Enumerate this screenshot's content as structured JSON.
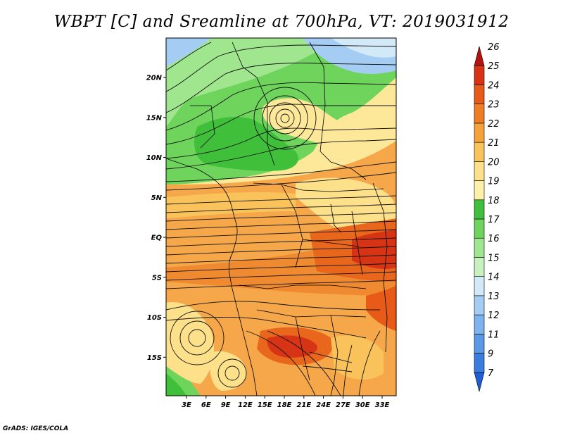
{
  "title": "WBPT [C] and Sreamline at 700hPa, VT: 2019031912",
  "credit": "GrADS: IGES/COLA",
  "lat_ticks": [
    {
      "label": "20N",
      "lat": 20
    },
    {
      "label": "15N",
      "lat": 15
    },
    {
      "label": "10N",
      "lat": 10
    },
    {
      "label": "5N",
      "lat": 5
    },
    {
      "label": "EQ",
      "lat": 0
    },
    {
      "label": "5S",
      "lat": -5
    },
    {
      "label": "10S",
      "lat": -10
    },
    {
      "label": "15S",
      "lat": -15
    }
  ],
  "lon_ticks": [
    {
      "label": "3E",
      "lon": 3
    },
    {
      "label": "6E",
      "lon": 6
    },
    {
      "label": "9E",
      "lon": 9
    },
    {
      "label": "12E",
      "lon": 12
    },
    {
      "label": "15E",
      "lon": 15
    },
    {
      "label": "18E",
      "lon": 18
    },
    {
      "label": "21E",
      "lon": 21
    },
    {
      "label": "24E",
      "lon": 24
    },
    {
      "label": "27E",
      "lon": 27
    },
    {
      "label": "30E",
      "lon": 30
    },
    {
      "label": "33E",
      "lon": 33
    }
  ],
  "colorbar": {
    "levels": [
      "7",
      "9",
      "11",
      "12",
      "13",
      "14",
      "15",
      "16",
      "17",
      "18",
      "19",
      "20",
      "21",
      "22",
      "23",
      "24",
      "25",
      "26"
    ],
    "colors": [
      "#1f5fd6",
      "#3a7de0",
      "#5a98e8",
      "#7db3ee",
      "#a5cdf3",
      "#d2e9f8",
      "#c8f0c0",
      "#9fe68e",
      "#6fd45c",
      "#3fbf3a",
      "#fdf0a8",
      "#fde08a",
      "#f9c25a",
      "#f5a23a",
      "#ef7f25",
      "#e85a18",
      "#d63414",
      "#b41410"
    ]
  }
}
